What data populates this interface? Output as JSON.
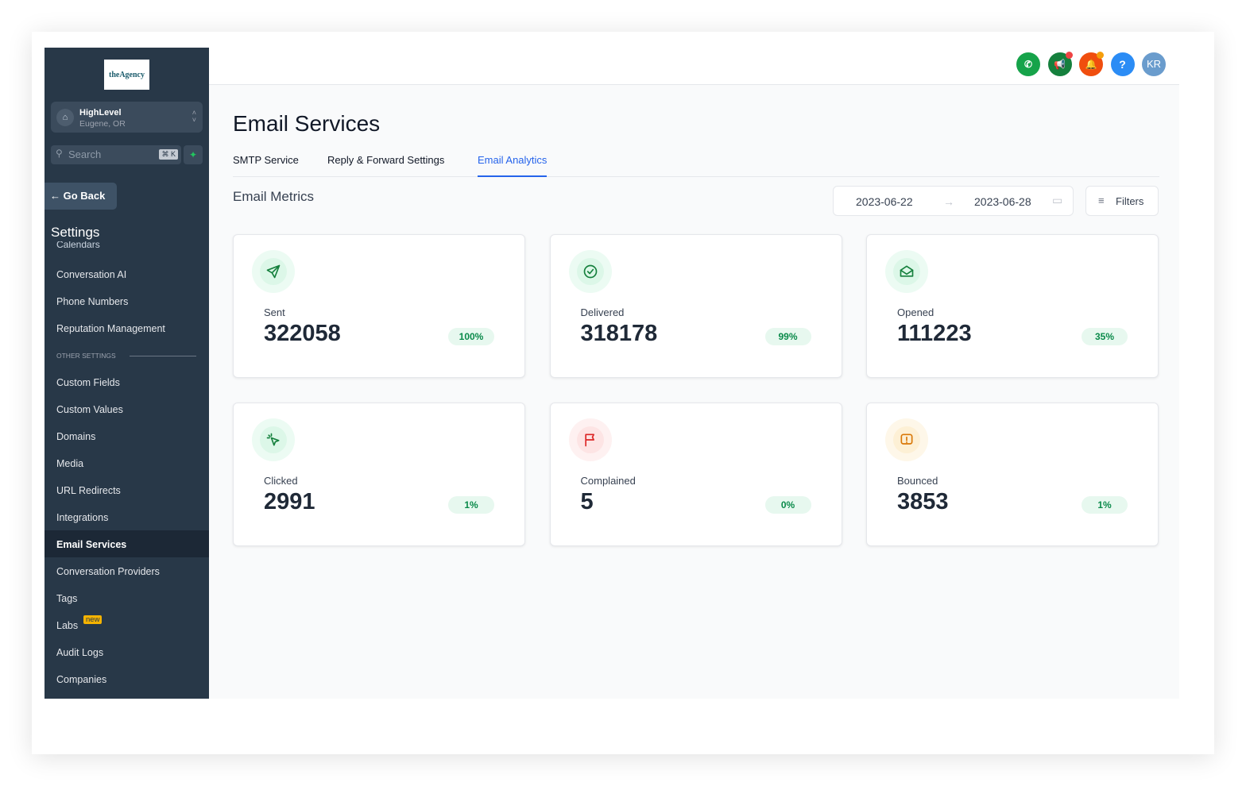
{
  "sidebar": {
    "logo": "theAgency",
    "location": {
      "name": "HighLevel",
      "city": "Eugene, OR"
    },
    "search_placeholder": "Search",
    "shortcut": "⌘ K",
    "go_back": "Go Back",
    "title": "Settings",
    "cut_item": "Calendars",
    "items": [
      {
        "label": "Conversation AI"
      },
      {
        "label": "Phone Numbers"
      },
      {
        "label": "Reputation Management"
      },
      {
        "section": "OTHER SETTINGS"
      },
      {
        "label": "Custom Fields"
      },
      {
        "label": "Custom Values"
      },
      {
        "label": "Domains"
      },
      {
        "label": "Media"
      },
      {
        "label": "URL Redirects"
      },
      {
        "label": "Integrations"
      },
      {
        "label": "Email Services",
        "active": true
      },
      {
        "label": "Conversation Providers"
      },
      {
        "label": "Tags"
      },
      {
        "label": "Labs",
        "badge": "new"
      },
      {
        "label": "Audit Logs"
      },
      {
        "label": "Companies"
      }
    ]
  },
  "header": {
    "icons": [
      {
        "name": "phone-icon",
        "color": "#16a34a"
      },
      {
        "name": "megaphone-icon",
        "color": "#15803d"
      },
      {
        "name": "bell-icon",
        "color": "#f04e0e"
      },
      {
        "name": "help-icon",
        "color": "#2b8cf5"
      }
    ],
    "avatar": "KR"
  },
  "page": {
    "title": "Email Services",
    "tabs": [
      "SMTP Service",
      "Reply & Forward Settings",
      "Email Analytics"
    ],
    "active_tab": "Email Analytics",
    "metrics_title": "Email Metrics",
    "date_from": "2023-06-22",
    "date_to": "2023-06-28",
    "filters": "Filters"
  },
  "cards": [
    {
      "label": "Sent",
      "value": "322058",
      "pct": "100%",
      "icon": "send-icon",
      "color": "#15803d",
      "bg": "#dcf7e8"
    },
    {
      "label": "Delivered",
      "value": "318178",
      "pct": "99%",
      "icon": "check-circle-icon",
      "color": "#15803d",
      "bg": "#dcf7e8"
    },
    {
      "label": "Opened",
      "value": "111223",
      "pct": "35%",
      "icon": "mail-open-icon",
      "color": "#15803d",
      "bg": "#dcf7e8"
    },
    {
      "label": "Clicked",
      "value": "2991",
      "pct": "1%",
      "icon": "cursor-click-icon",
      "color": "#15803d",
      "bg": "#dcf7e8"
    },
    {
      "label": "Complained",
      "value": "5",
      "pct": "0%",
      "icon": "flag-icon",
      "color": "#dc2626",
      "bg": "#fde4e4"
    },
    {
      "label": "Bounced",
      "value": "3853",
      "pct": "1%",
      "icon": "alert-message-icon",
      "color": "#d97706",
      "bg": "#fdf0d5"
    }
  ]
}
